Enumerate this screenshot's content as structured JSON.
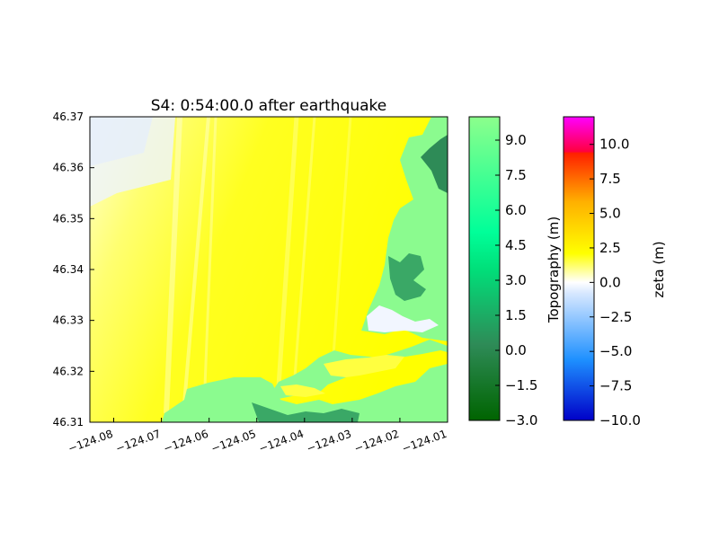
{
  "chart_data": {
    "type": "heatmap",
    "title": "S4: 0:54:00.0 after earthquake",
    "xlabel": "",
    "ylabel": "",
    "xlim": [
      -124.085,
      -124.01
    ],
    "ylim": [
      46.31,
      46.37
    ],
    "x_ticks": [
      -124.08,
      -124.07,
      -124.06,
      -124.05,
      -124.04,
      -124.03,
      -124.02,
      -124.01
    ],
    "x_tick_labels": [
      "−124.08",
      "−124.07",
      "−124.06",
      "−124.05",
      "−124.04",
      "−124.03",
      "−124.02",
      "−124.01"
    ],
    "y_ticks": [
      46.31,
      46.32,
      46.33,
      46.34,
      46.35,
      46.36,
      46.37
    ],
    "y_tick_labels": [
      "46.31",
      "46.32",
      "46.33",
      "46.34",
      "46.35",
      "46.36",
      "46.37"
    ],
    "grid": false,
    "colorbars": [
      {
        "label": "Topography (m)",
        "range": [
          -3.0,
          10.0
        ],
        "ticks": [
          -3.0,
          -1.5,
          0.0,
          1.5,
          3.0,
          4.5,
          6.0,
          7.5,
          9.0
        ],
        "tick_labels": [
          "−3.0",
          "−1.5",
          "0.0",
          "1.5",
          "3.0",
          "4.5",
          "6.0",
          "7.5",
          "9.0"
        ],
        "colors": [
          "#006400",
          "#3cb371",
          "#00ff99",
          "#80ff80"
        ]
      },
      {
        "label": "zeta (m)",
        "range": [
          -10.0,
          12.0
        ],
        "ticks": [
          -10.0,
          -7.5,
          -5.0,
          -2.5,
          0.0,
          2.5,
          5.0,
          7.5,
          10.0
        ],
        "tick_labels": [
          "−10.0",
          "−7.5",
          "−5.0",
          "−2.5",
          "0.0",
          "2.5",
          "5.0",
          "7.5",
          "10.0"
        ],
        "colors": [
          "#0000c8",
          "#1e90ff",
          "#ffffff",
          "#ffff00",
          "#ff8c00",
          "#ff0000",
          "#ff00ff"
        ]
      }
    ]
  }
}
